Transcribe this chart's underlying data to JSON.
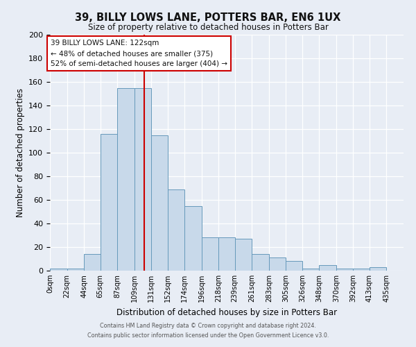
{
  "title": "39, BILLY LOWS LANE, POTTERS BAR, EN6 1UX",
  "subtitle": "Size of property relative to detached houses in Potters Bar",
  "xlabel": "Distribution of detached houses by size in Potters Bar",
  "ylabel": "Number of detached properties",
  "bar_color": "#c8d9ea",
  "bar_edge_color": "#6699bb",
  "bg_color": "#e8edf5",
  "grid_color": "#ffffff",
  "bin_labels": [
    "0sqm",
    "22sqm",
    "44sqm",
    "65sqm",
    "87sqm",
    "109sqm",
    "131sqm",
    "152sqm",
    "174sqm",
    "196sqm",
    "218sqm",
    "239sqm",
    "261sqm",
    "283sqm",
    "305sqm",
    "326sqm",
    "348sqm",
    "370sqm",
    "392sqm",
    "413sqm",
    "435sqm"
  ],
  "bin_edges": [
    0,
    22,
    44,
    65,
    87,
    109,
    131,
    152,
    174,
    196,
    218,
    239,
    261,
    283,
    305,
    326,
    348,
    370,
    392,
    413,
    435,
    457
  ],
  "bar_heights": [
    2,
    2,
    14,
    116,
    155,
    155,
    115,
    69,
    55,
    28,
    28,
    27,
    14,
    11,
    8,
    2,
    5,
    2,
    2,
    3,
    0
  ],
  "vline_x": 122,
  "vline_color": "#cc0000",
  "ylim": [
    0,
    200
  ],
  "yticks": [
    0,
    20,
    40,
    60,
    80,
    100,
    120,
    140,
    160,
    180,
    200
  ],
  "annotation_title": "39 BILLY LOWS LANE: 122sqm",
  "annotation_line1": "← 48% of detached houses are smaller (375)",
  "annotation_line2": "52% of semi-detached houses are larger (404) →",
  "annotation_box_color": "#ffffff",
  "annotation_box_edge": "#cc0000",
  "footer1": "Contains HM Land Registry data © Crown copyright and database right 2024.",
  "footer2": "Contains public sector information licensed under the Open Government Licence v3.0."
}
